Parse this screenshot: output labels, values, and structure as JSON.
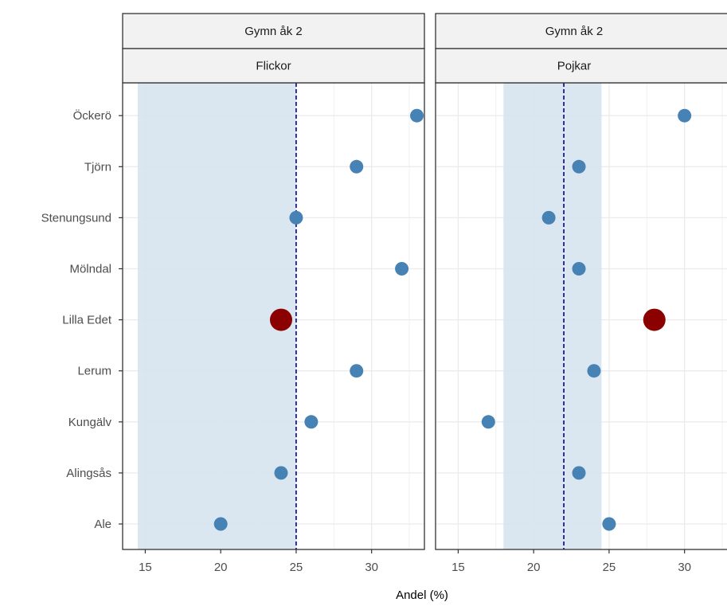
{
  "chart_data": {
    "type": "scatter",
    "xlabel": "Andel (%)",
    "ylabel": "",
    "xlim": [
      13.5,
      33.5
    ],
    "x_ticks": [
      15,
      20,
      25,
      30
    ],
    "categories": [
      "Ale",
      "Alingsås",
      "Kungälv",
      "Lerum",
      "Lilla Edet",
      "Mölndal",
      "Stenungsund",
      "Tjörn",
      "Öckerö"
    ],
    "highlight_category": "Lilla Edet",
    "grid": true,
    "colors": {
      "point": "#4682b4",
      "highlight": "#8b0000",
      "band": "#d6e4f0",
      "reference_line": "#00008b"
    },
    "panels": [
      {
        "strip_top": "Gymn åk 2",
        "strip_bottom": "Flickor",
        "reference": 25,
        "band": [
          14.5,
          25
        ],
        "values": [
          20,
          24,
          26,
          29,
          24,
          32,
          25,
          29,
          33
        ]
      },
      {
        "strip_top": "Gymn åk 2",
        "strip_bottom": "Pojkar",
        "reference": 22,
        "band": [
          18,
          24.5
        ],
        "values": [
          25,
          23,
          17,
          24,
          28,
          23,
          21,
          23,
          30
        ]
      }
    ]
  }
}
